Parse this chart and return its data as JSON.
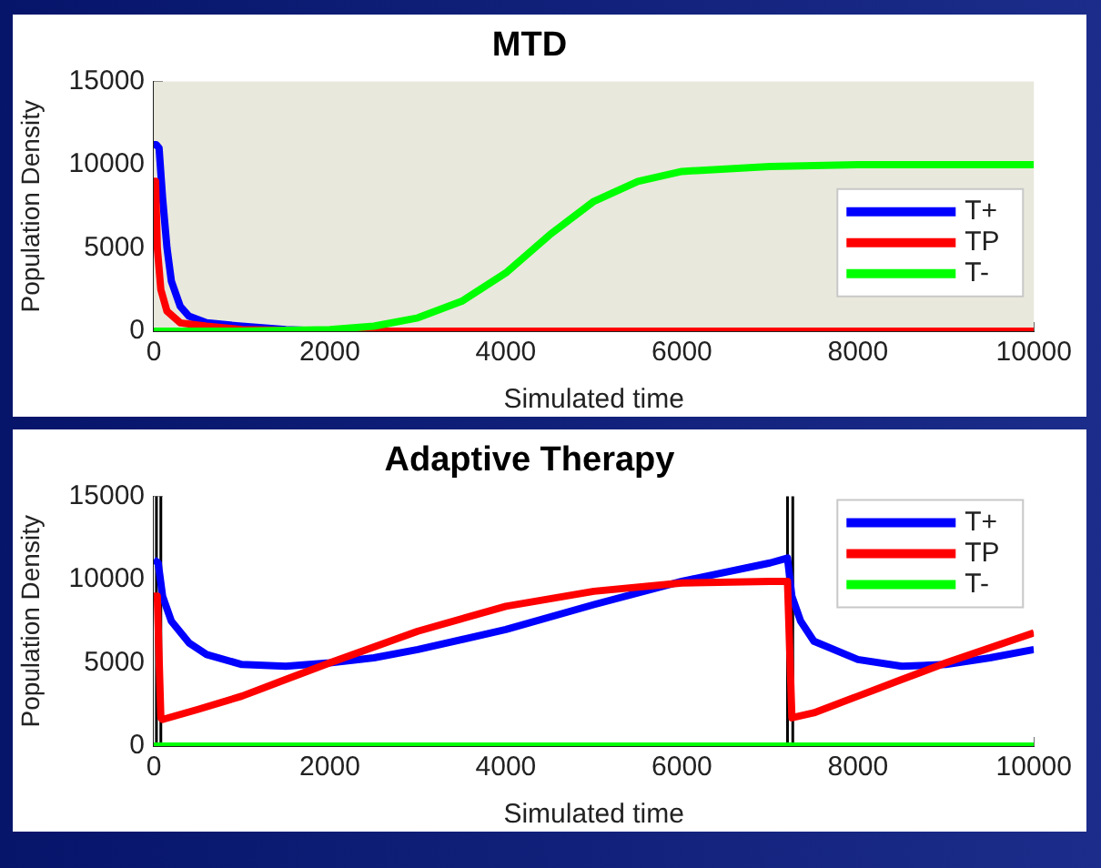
{
  "chart_data": [
    {
      "type": "line",
      "title": "MTD",
      "xlabel": "Simulated time",
      "ylabel": "Population Density",
      "xlim": [
        0,
        10000
      ],
      "xticks": [
        0,
        2000,
        4000,
        6000,
        8000,
        10000
      ],
      "ylim": [
        0,
        15000
      ],
      "yticks": [
        0,
        5000,
        10000,
        15000
      ],
      "grid": false,
      "legend": "right",
      "marker": "none",
      "line_style": "solid",
      "series": [
        {
          "name": "T+",
          "color": "#0000ff",
          "x": [
            0,
            30,
            60,
            100,
            150,
            200,
            300,
            400,
            600,
            1000,
            1500,
            2000
          ],
          "values": [
            11200,
            11200,
            11000,
            8000,
            5000,
            3000,
            1500,
            900,
            500,
            300,
            100,
            0
          ]
        },
        {
          "name": "TP",
          "color": "#ff0000",
          "x": [
            0,
            20,
            40,
            80,
            150,
            300,
            600,
            1000,
            2000,
            3000,
            10000
          ],
          "values": [
            9000,
            9000,
            5000,
            2500,
            1200,
            500,
            300,
            100,
            0,
            0,
            0
          ]
        },
        {
          "name": "T-",
          "color": "#00ff00",
          "x": [
            0,
            1000,
            2000,
            2500,
            3000,
            3500,
            4000,
            4500,
            5000,
            5500,
            6000,
            7000,
            8000,
            10000
          ],
          "values": [
            0,
            0,
            100,
            300,
            800,
            1800,
            3500,
            5800,
            7800,
            9000,
            9600,
            9900,
            10000,
            10000
          ]
        }
      ]
    },
    {
      "type": "line",
      "title": "Adaptive Therapy",
      "xlabel": "Simulated time",
      "ylabel": "Population Density",
      "xlim": [
        0,
        10000
      ],
      "xticks": [
        0,
        2000,
        4000,
        6000,
        8000,
        10000
      ],
      "ylim": [
        0,
        15000
      ],
      "yticks": [
        0,
        5000,
        10000,
        15000
      ],
      "grid": false,
      "legend": "top right",
      "marker": "none",
      "line_style": "solid",
      "ref_lines": [
        {
          "axis": "x",
          "value": 30,
          "color": "#000000"
        },
        {
          "axis": "x",
          "value": 80,
          "color": "#000000"
        },
        {
          "axis": "x",
          "value": 7200,
          "color": "#000000"
        },
        {
          "axis": "x",
          "value": 7260,
          "color": "#000000"
        }
      ],
      "series": [
        {
          "name": "T+",
          "color": "#0000ff",
          "x": [
            0,
            50,
            100,
            200,
            400,
            600,
            1000,
            1500,
            2000,
            2500,
            3000,
            4000,
            5000,
            6000,
            7000,
            7200,
            7250,
            7350,
            7500,
            8000,
            8500,
            9000,
            9500,
            10000
          ],
          "values": [
            11200,
            11000,
            9000,
            7500,
            6200,
            5500,
            4900,
            4800,
            5000,
            5300,
            5800,
            7000,
            8500,
            9900,
            11000,
            11300,
            9000,
            7500,
            6300,
            5200,
            4800,
            4900,
            5300,
            5800
          ]
        },
        {
          "name": "TP",
          "color": "#ff0000",
          "x": [
            0,
            40,
            80,
            100,
            500,
            1000,
            1500,
            2000,
            3000,
            4000,
            5000,
            6000,
            7000,
            7200,
            7250,
            7500,
            8000,
            8500,
            9000,
            10000
          ],
          "values": [
            9000,
            9000,
            1700,
            1600,
            2200,
            3000,
            4000,
            5000,
            6900,
            8400,
            9300,
            9800,
            9900,
            9900,
            1700,
            2000,
            3000,
            4000,
            5000,
            6800
          ]
        },
        {
          "name": "T-",
          "color": "#00ff00",
          "x": [
            0,
            10000
          ],
          "values": [
            0,
            0
          ]
        }
      ]
    }
  ]
}
